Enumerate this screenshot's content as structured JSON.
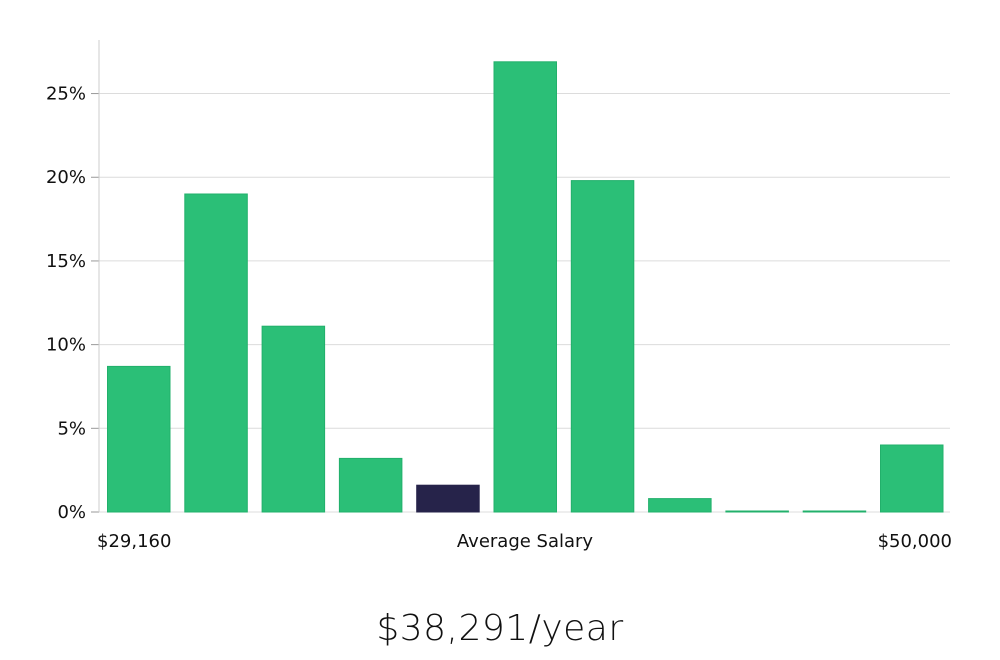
{
  "chart_data": {
    "type": "bar",
    "title": "",
    "xlabel": "Average Salary",
    "ylabel": "",
    "ylim": [
      0,
      28.2
    ],
    "yticks": [
      0,
      5,
      10,
      15,
      20,
      25
    ],
    "ytick_labels": [
      "0%",
      "5%",
      "10%",
      "15%",
      "20%",
      "25%"
    ],
    "values": [
      8.7,
      19.0,
      11.1,
      3.2,
      1.6,
      26.9,
      19.8,
      0.8,
      0.05,
      0.05,
      4.0
    ],
    "highlight_index": 4,
    "x_min_label": "$29,160",
    "x_max_label": "$50,000",
    "colors": {
      "bar": "#2bbf77",
      "bar_stroke": "#22b06b",
      "highlight": "#26234a",
      "grid": "#dcdcdc",
      "axis": "#cccccc"
    }
  },
  "salary": {
    "text": "$38,291/year"
  }
}
